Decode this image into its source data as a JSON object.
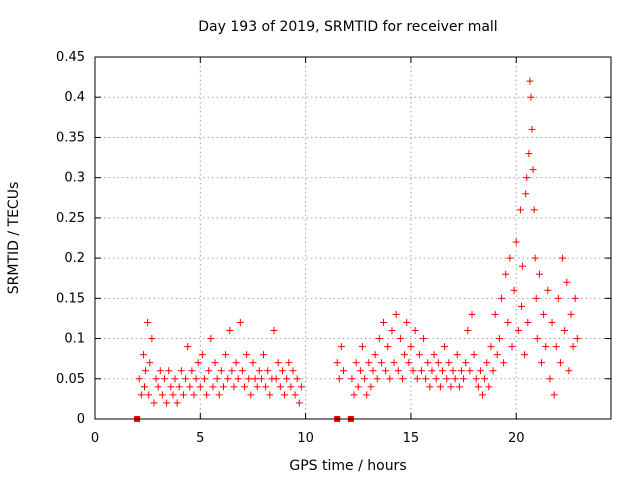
{
  "chart_data": {
    "type": "scatter",
    "title": "Day 193 of 2019, SRMTID for receiver mall",
    "xlabel": "GPS time / hours",
    "ylabel": "SRMTID / TECUs",
    "xlim": [
      0,
      24.5
    ],
    "ylim": [
      0,
      0.45
    ],
    "x_ticks": [
      "0",
      "5",
      "10",
      "15",
      "20"
    ],
    "y_ticks": [
      "0",
      "0.05",
      "0.1",
      "0.15",
      "0.2",
      "0.25",
      "0.3",
      "0.35",
      "0.4",
      "0.45"
    ],
    "grid": true,
    "marker": "plus",
    "color": "#ff0000",
    "zero_points": [
      {
        "x": 2.0,
        "y": 0
      },
      {
        "x": 11.5,
        "y": 0
      },
      {
        "x": 12.15,
        "y": 0
      }
    ],
    "series": [
      {
        "values": [
          [
            2.1,
            0.05
          ],
          [
            2.2,
            0.03
          ],
          [
            2.3,
            0.08
          ],
          [
            2.35,
            0.04
          ],
          [
            2.4,
            0.06
          ],
          [
            2.5,
            0.12
          ],
          [
            2.55,
            0.03
          ],
          [
            2.6,
            0.07
          ],
          [
            2.7,
            0.1
          ],
          [
            2.8,
            0.02
          ],
          [
            2.9,
            0.05
          ],
          [
            3.0,
            0.04
          ],
          [
            3.1,
            0.06
          ],
          [
            3.2,
            0.03
          ],
          [
            3.3,
            0.05
          ],
          [
            3.4,
            0.02
          ],
          [
            3.5,
            0.06
          ],
          [
            3.6,
            0.04
          ],
          [
            3.7,
            0.03
          ],
          [
            3.8,
            0.05
          ],
          [
            3.9,
            0.02
          ],
          [
            4.0,
            0.04
          ],
          [
            4.1,
            0.06
          ],
          [
            4.2,
            0.03
          ],
          [
            4.3,
            0.05
          ],
          [
            4.4,
            0.09
          ],
          [
            4.5,
            0.04
          ],
          [
            4.6,
            0.06
          ],
          [
            4.7,
            0.03
          ],
          [
            4.8,
            0.05
          ],
          [
            4.9,
            0.07
          ],
          [
            5.0,
            0.04
          ],
          [
            5.1,
            0.08
          ],
          [
            5.2,
            0.05
          ],
          [
            5.3,
            0.03
          ],
          [
            5.4,
            0.06
          ],
          [
            5.5,
            0.1
          ],
          [
            5.6,
            0.04
          ],
          [
            5.7,
            0.07
          ],
          [
            5.8,
            0.05
          ],
          [
            5.9,
            0.03
          ],
          [
            6.0,
            0.06
          ],
          [
            6.1,
            0.04
          ],
          [
            6.2,
            0.08
          ],
          [
            6.3,
            0.05
          ],
          [
            6.4,
            0.11
          ],
          [
            6.5,
            0.06
          ],
          [
            6.6,
            0.04
          ],
          [
            6.7,
            0.07
          ],
          [
            6.8,
            0.05
          ],
          [
            6.9,
            0.12
          ],
          [
            7.0,
            0.06
          ],
          [
            7.1,
            0.04
          ],
          [
            7.2,
            0.08
          ],
          [
            7.3,
            0.05
          ],
          [
            7.4,
            0.03
          ],
          [
            7.5,
            0.07
          ],
          [
            7.6,
            0.05
          ],
          [
            7.7,
            0.04
          ],
          [
            7.8,
            0.06
          ],
          [
            7.9,
            0.05
          ],
          [
            8.0,
            0.08
          ],
          [
            8.1,
            0.04
          ],
          [
            8.2,
            0.06
          ],
          [
            8.3,
            0.03
          ],
          [
            8.4,
            0.05
          ],
          [
            8.5,
            0.11
          ],
          [
            8.6,
            0.05
          ],
          [
            8.7,
            0.07
          ],
          [
            8.8,
            0.04
          ],
          [
            8.9,
            0.06
          ],
          [
            9.0,
            0.03
          ],
          [
            9.1,
            0.05
          ],
          [
            9.2,
            0.07
          ],
          [
            9.3,
            0.04
          ],
          [
            9.4,
            0.06
          ],
          [
            9.5,
            0.03
          ],
          [
            9.6,
            0.05
          ],
          [
            9.7,
            0.02
          ],
          [
            9.8,
            0.04
          ],
          [
            11.5,
            0.07
          ],
          [
            11.6,
            0.05
          ],
          [
            11.7,
            0.09
          ],
          [
            11.8,
            0.06
          ],
          [
            12.2,
            0.05
          ],
          [
            12.3,
            0.03
          ],
          [
            12.4,
            0.07
          ],
          [
            12.5,
            0.04
          ],
          [
            12.6,
            0.06
          ],
          [
            12.7,
            0.09
          ],
          [
            12.8,
            0.05
          ],
          [
            12.9,
            0.03
          ],
          [
            13.0,
            0.07
          ],
          [
            13.1,
            0.04
          ],
          [
            13.2,
            0.06
          ],
          [
            13.3,
            0.08
          ],
          [
            13.4,
            0.05
          ],
          [
            13.5,
            0.1
          ],
          [
            13.6,
            0.07
          ],
          [
            13.7,
            0.12
          ],
          [
            13.8,
            0.06
          ],
          [
            13.9,
            0.09
          ],
          [
            14.0,
            0.05
          ],
          [
            14.1,
            0.11
          ],
          [
            14.2,
            0.07
          ],
          [
            14.3,
            0.13
          ],
          [
            14.4,
            0.06
          ],
          [
            14.5,
            0.1
          ],
          [
            14.6,
            0.05
          ],
          [
            14.7,
            0.08
          ],
          [
            14.8,
            0.12
          ],
          [
            14.9,
            0.07
          ],
          [
            15.0,
            0.09
          ],
          [
            15.1,
            0.06
          ],
          [
            15.2,
            0.11
          ],
          [
            15.3,
            0.05
          ],
          [
            15.4,
            0.08
          ],
          [
            15.5,
            0.06
          ],
          [
            15.6,
            0.1
          ],
          [
            15.7,
            0.05
          ],
          [
            15.8,
            0.07
          ],
          [
            15.9,
            0.04
          ],
          [
            16.0,
            0.06
          ],
          [
            16.1,
            0.08
          ],
          [
            16.2,
            0.05
          ],
          [
            16.3,
            0.07
          ],
          [
            16.4,
            0.04
          ],
          [
            16.5,
            0.06
          ],
          [
            16.6,
            0.09
          ],
          [
            16.7,
            0.05
          ],
          [
            16.8,
            0.07
          ],
          [
            16.9,
            0.04
          ],
          [
            17.0,
            0.06
          ],
          [
            17.1,
            0.05
          ],
          [
            17.2,
            0.08
          ],
          [
            17.3,
            0.04
          ],
          [
            17.4,
            0.06
          ],
          [
            17.5,
            0.05
          ],
          [
            17.6,
            0.07
          ],
          [
            17.7,
            0.11
          ],
          [
            17.8,
            0.06
          ],
          [
            17.9,
            0.13
          ],
          [
            18.0,
            0.08
          ],
          [
            18.1,
            0.05
          ],
          [
            18.2,
            0.04
          ],
          [
            18.3,
            0.06
          ],
          [
            18.4,
            0.03
          ],
          [
            18.5,
            0.05
          ],
          [
            18.6,
            0.07
          ],
          [
            18.7,
            0.04
          ],
          [
            18.8,
            0.09
          ],
          [
            18.9,
            0.06
          ],
          [
            19.0,
            0.13
          ],
          [
            19.1,
            0.08
          ],
          [
            19.2,
            0.1
          ],
          [
            19.3,
            0.15
          ],
          [
            19.4,
            0.07
          ],
          [
            19.5,
            0.18
          ],
          [
            19.6,
            0.12
          ],
          [
            19.7,
            0.2
          ],
          [
            19.8,
            0.09
          ],
          [
            19.9,
            0.16
          ],
          [
            20.0,
            0.22
          ],
          [
            20.1,
            0.11
          ],
          [
            20.2,
            0.26
          ],
          [
            20.25,
            0.14
          ],
          [
            20.3,
            0.19
          ],
          [
            20.4,
            0.08
          ],
          [
            20.45,
            0.28
          ],
          [
            20.5,
            0.3
          ],
          [
            20.55,
            0.12
          ],
          [
            20.6,
            0.33
          ],
          [
            20.65,
            0.42
          ],
          [
            20.7,
            0.4
          ],
          [
            20.75,
            0.36
          ],
          [
            20.8,
            0.31
          ],
          [
            20.85,
            0.26
          ],
          [
            20.9,
            0.2
          ],
          [
            20.95,
            0.15
          ],
          [
            21.0,
            0.1
          ],
          [
            21.1,
            0.18
          ],
          [
            21.2,
            0.07
          ],
          [
            21.3,
            0.13
          ],
          [
            21.4,
            0.09
          ],
          [
            21.5,
            0.16
          ],
          [
            21.6,
            0.05
          ],
          [
            21.7,
            0.12
          ],
          [
            21.8,
            0.03
          ],
          [
            21.9,
            0.09
          ],
          [
            22.0,
            0.15
          ],
          [
            22.1,
            0.07
          ],
          [
            22.2,
            0.2
          ],
          [
            22.3,
            0.11
          ],
          [
            22.4,
            0.17
          ],
          [
            22.5,
            0.06
          ],
          [
            22.6,
            0.13
          ],
          [
            22.7,
            0.09
          ],
          [
            22.8,
            0.15
          ],
          [
            22.9,
            0.1
          ]
        ]
      }
    ]
  }
}
